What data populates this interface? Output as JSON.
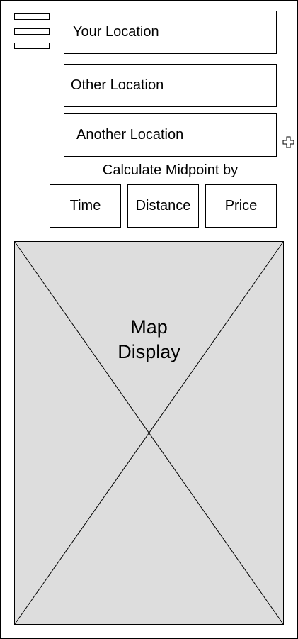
{
  "menu": {
    "icon": "hamburger-menu-icon"
  },
  "locations": {
    "your": "Your Location",
    "other": "Other Location",
    "another": "Another Location",
    "add_icon": "plus-icon"
  },
  "midpoint": {
    "caption": "Calculate Midpoint by",
    "options": [
      "Time",
      "Distance",
      "Price"
    ]
  },
  "map": {
    "line1": "Map",
    "line2": "Display",
    "fill_color": "#dddddd"
  }
}
